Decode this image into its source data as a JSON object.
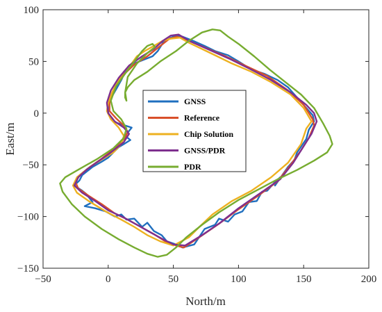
{
  "chart_data": {
    "type": "line",
    "xlabel": "North/m",
    "ylabel": "East/m",
    "xlim": [
      -50,
      200
    ],
    "ylim": [
      -150,
      100
    ],
    "xticks": [
      -50,
      0,
      50,
      100,
      150,
      200
    ],
    "yticks": [
      -150,
      -100,
      -50,
      0,
      50,
      100
    ],
    "xtick_labels": [
      "−50",
      "0",
      "50",
      "100",
      "150",
      "200"
    ],
    "ytick_labels": [
      "−150",
      "−100",
      "−50",
      "0",
      "50",
      "100"
    ],
    "grid": false,
    "legend_position": "center",
    "series": [
      {
        "name": "GNSS",
        "color": "#1f6fbf",
        "points": [
          [
            57,
            -130
          ],
          [
            66,
            -127
          ],
          [
            74,
            -112
          ],
          [
            82,
            -108
          ],
          [
            85,
            -102
          ],
          [
            92,
            -105
          ],
          [
            97,
            -98
          ],
          [
            103,
            -95
          ],
          [
            108,
            -86
          ],
          [
            114,
            -85
          ],
          [
            118,
            -76
          ],
          [
            122,
            -75
          ],
          [
            127,
            -68
          ],
          [
            132,
            -62
          ],
          [
            128,
            -70
          ],
          [
            138,
            -52
          ],
          [
            143,
            -45
          ],
          [
            145,
            -38
          ],
          [
            152,
            -25
          ],
          [
            154,
            -16
          ],
          [
            158,
            -8
          ],
          [
            157,
            -2
          ],
          [
            152,
            5
          ],
          [
            145,
            15
          ],
          [
            138,
            25
          ],
          [
            130,
            32
          ],
          [
            120,
            38
          ],
          [
            110,
            42
          ],
          [
            100,
            50
          ],
          [
            92,
            56
          ],
          [
            82,
            60
          ],
          [
            74,
            65
          ],
          [
            65,
            70
          ],
          [
            57,
            74
          ],
          [
            52,
            75
          ],
          [
            48,
            73
          ],
          [
            42,
            68
          ],
          [
            38,
            60
          ],
          [
            34,
            55
          ],
          [
            28,
            52
          ],
          [
            20,
            48
          ],
          [
            13,
            40
          ],
          [
            10,
            32
          ],
          [
            6,
            23
          ],
          [
            1,
            12
          ],
          [
            0,
            0
          ],
          [
            4,
            -8
          ],
          [
            8,
            -10
          ],
          [
            13,
            -12
          ],
          [
            18,
            -14
          ],
          [
            13,
            -22
          ],
          [
            17,
            -26
          ],
          [
            12,
            -30
          ],
          [
            8,
            -33
          ],
          [
            4,
            -38
          ],
          [
            0,
            -43
          ],
          [
            -5,
            -47
          ],
          [
            -12,
            -52
          ],
          [
            -20,
            -60
          ],
          [
            -22,
            -65
          ],
          [
            -26,
            -70
          ],
          [
            -20,
            -75
          ],
          [
            -17,
            -78
          ],
          [
            -12,
            -86
          ],
          [
            -18,
            -90
          ],
          [
            -10,
            -92
          ],
          [
            -2,
            -95
          ],
          [
            5,
            -100
          ],
          [
            10,
            -98
          ],
          [
            14,
            -103
          ],
          [
            20,
            -102
          ],
          [
            26,
            -110
          ],
          [
            30,
            -106
          ],
          [
            35,
            -114
          ],
          [
            41,
            -118
          ],
          [
            45,
            -124
          ],
          [
            52,
            -127
          ],
          [
            57,
            -130
          ]
        ]
      },
      {
        "name": "Reference",
        "color": "#d9502a",
        "points": [
          [
            58,
            -130
          ],
          [
            70,
            -120
          ],
          [
            85,
            -107
          ],
          [
            100,
            -93
          ],
          [
            115,
            -80
          ],
          [
            130,
            -66
          ],
          [
            140,
            -50
          ],
          [
            148,
            -36
          ],
          [
            154,
            -24
          ],
          [
            158,
            -12
          ],
          [
            157,
            -6
          ],
          [
            150,
            8
          ],
          [
            138,
            22
          ],
          [
            122,
            36
          ],
          [
            105,
            46
          ],
          [
            90,
            55
          ],
          [
            75,
            63
          ],
          [
            60,
            71
          ],
          [
            53,
            74
          ],
          [
            47,
            72
          ],
          [
            40,
            65
          ],
          [
            30,
            55
          ],
          [
            20,
            47
          ],
          [
            10,
            35
          ],
          [
            4,
            22
          ],
          [
            1,
            10
          ],
          [
            1,
            2
          ],
          [
            6,
            -5
          ],
          [
            12,
            -12
          ],
          [
            15,
            -18
          ],
          [
            13,
            -24
          ],
          [
            8,
            -30
          ],
          [
            2,
            -37
          ],
          [
            -5,
            -44
          ],
          [
            -14,
            -52
          ],
          [
            -22,
            -60
          ],
          [
            -25,
            -67
          ],
          [
            -23,
            -73
          ],
          [
            -15,
            -80
          ],
          [
            -5,
            -88
          ],
          [
            5,
            -97
          ],
          [
            15,
            -103
          ],
          [
            25,
            -110
          ],
          [
            35,
            -117
          ],
          [
            45,
            -125
          ],
          [
            52,
            -128
          ],
          [
            58,
            -130
          ]
        ]
      },
      {
        "name": "Chip Solution",
        "color": "#edb120",
        "points": [
          [
            50,
            -128
          ],
          [
            62,
            -120
          ],
          [
            70,
            -110
          ],
          [
            80,
            -98
          ],
          [
            95,
            -85
          ],
          [
            110,
            -75
          ],
          [
            125,
            -62
          ],
          [
            138,
            -48
          ],
          [
            148,
            -30
          ],
          [
            152,
            -15
          ],
          [
            156,
            -8
          ],
          [
            150,
            5
          ],
          [
            140,
            18
          ],
          [
            125,
            30
          ],
          [
            110,
            40
          ],
          [
            95,
            48
          ],
          [
            82,
            56
          ],
          [
            72,
            62
          ],
          [
            62,
            68
          ],
          [
            55,
            73
          ],
          [
            48,
            72
          ],
          [
            42,
            70
          ],
          [
            35,
            65
          ],
          [
            28,
            60
          ],
          [
            22,
            55
          ],
          [
            18,
            48
          ],
          [
            12,
            40
          ],
          [
            7,
            30
          ],
          [
            3,
            20
          ],
          [
            0,
            10
          ],
          [
            -1,
            2
          ],
          [
            2,
            -6
          ],
          [
            8,
            -14
          ],
          [
            12,
            -22
          ],
          [
            10,
            -30
          ],
          [
            4,
            -38
          ],
          [
            -4,
            -44
          ],
          [
            -14,
            -52
          ],
          [
            -24,
            -62
          ],
          [
            -27,
            -70
          ],
          [
            -24,
            -77
          ],
          [
            -15,
            -85
          ],
          [
            -2,
            -95
          ],
          [
            10,
            -103
          ],
          [
            20,
            -110
          ],
          [
            30,
            -118
          ],
          [
            40,
            -124
          ],
          [
            50,
            -128
          ]
        ]
      },
      {
        "name": "GNSS/PDR",
        "color": "#7e2f8e",
        "points": [
          [
            59,
            -128
          ],
          [
            72,
            -118
          ],
          [
            86,
            -106
          ],
          [
            100,
            -92
          ],
          [
            116,
            -78
          ],
          [
            132,
            -64
          ],
          [
            142,
            -48
          ],
          [
            150,
            -32
          ],
          [
            156,
            -20
          ],
          [
            160,
            -8
          ],
          [
            158,
            0
          ],
          [
            152,
            8
          ],
          [
            140,
            20
          ],
          [
            125,
            32
          ],
          [
            110,
            42
          ],
          [
            94,
            52
          ],
          [
            78,
            61
          ],
          [
            62,
            70
          ],
          [
            54,
            76
          ],
          [
            48,
            75
          ],
          [
            42,
            70
          ],
          [
            35,
            62
          ],
          [
            26,
            55
          ],
          [
            16,
            46
          ],
          [
            8,
            34
          ],
          [
            2,
            22
          ],
          [
            -1,
            10
          ],
          [
            0,
            0
          ],
          [
            5,
            -8
          ],
          [
            12,
            -14
          ],
          [
            16,
            -20
          ],
          [
            12,
            -28
          ],
          [
            6,
            -34
          ],
          [
            0,
            -40
          ],
          [
            -8,
            -47
          ],
          [
            -16,
            -54
          ],
          [
            -23,
            -62
          ],
          [
            -26,
            -70
          ],
          [
            -20,
            -77
          ],
          [
            -10,
            -85
          ],
          [
            0,
            -94
          ],
          [
            12,
            -101
          ],
          [
            22,
            -108
          ],
          [
            32,
            -115
          ],
          [
            42,
            -122
          ],
          [
            50,
            -127
          ],
          [
            59,
            -128
          ]
        ]
      },
      {
        "name": "PDR",
        "color": "#77ac30",
        "points": [
          [
            14,
            12
          ],
          [
            13,
            15
          ],
          [
            13,
            20
          ],
          [
            15,
            25
          ],
          [
            20,
            32
          ],
          [
            30,
            40
          ],
          [
            40,
            50
          ],
          [
            52,
            60
          ],
          [
            62,
            70
          ],
          [
            72,
            78
          ],
          [
            80,
            81
          ],
          [
            86,
            80
          ],
          [
            92,
            74
          ],
          [
            100,
            67
          ],
          [
            112,
            55
          ],
          [
            124,
            42
          ],
          [
            136,
            30
          ],
          [
            148,
            18
          ],
          [
            158,
            5
          ],
          [
            165,
            -10
          ],
          [
            170,
            -22
          ],
          [
            172,
            -30
          ],
          [
            168,
            -38
          ],
          [
            158,
            -46
          ],
          [
            145,
            -55
          ],
          [
            130,
            -64
          ],
          [
            115,
            -74
          ],
          [
            100,
            -84
          ],
          [
            85,
            -96
          ],
          [
            72,
            -108
          ],
          [
            60,
            -120
          ],
          [
            52,
            -130
          ],
          [
            45,
            -137
          ],
          [
            38,
            -139
          ],
          [
            30,
            -136
          ],
          [
            20,
            -130
          ],
          [
            8,
            -122
          ],
          [
            -5,
            -112
          ],
          [
            -18,
            -100
          ],
          [
            -28,
            -88
          ],
          [
            -35,
            -76
          ],
          [
            -37,
            -68
          ],
          [
            -33,
            -62
          ],
          [
            -22,
            -54
          ],
          [
            -8,
            -44
          ],
          [
            4,
            -34
          ],
          [
            12,
            -24
          ],
          [
            14,
            -15
          ],
          [
            10,
            -6
          ],
          [
            4,
            2
          ],
          [
            2,
            12
          ],
          [
            6,
            26
          ],
          [
            14,
            40
          ],
          [
            20,
            50
          ],
          [
            26,
            60
          ],
          [
            30,
            65
          ],
          [
            34,
            67
          ],
          [
            36,
            64
          ],
          [
            30,
            58
          ],
          [
            22,
            48
          ],
          [
            15,
            35
          ],
          [
            13,
            20
          ],
          [
            14,
            12
          ]
        ]
      }
    ]
  }
}
